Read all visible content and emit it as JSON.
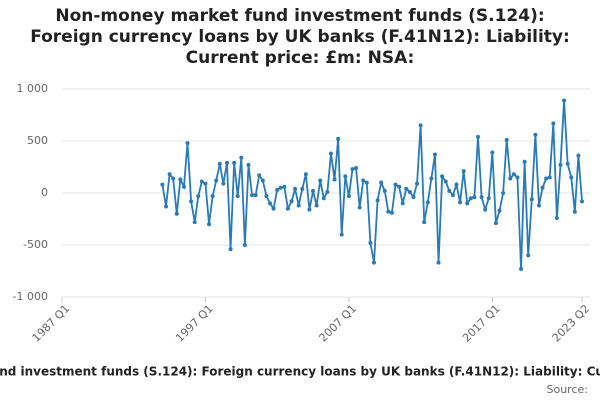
{
  "chart_data": {
    "type": "line",
    "title": "Non-money market fund investment funds (S.124): Foreign currency loans by UK banks (F.41N12): Liability: Current price: £m: NSA:",
    "source": "Source:",
    "x": [
      1994,
      1994.25,
      1994.5,
      1994.75,
      1995,
      1995.25,
      1995.5,
      1995.75,
      1996,
      1996.25,
      1996.5,
      1996.75,
      1997,
      1997.25,
      1997.5,
      1997.75,
      1998,
      1998.25,
      1998.5,
      1998.75,
      1999,
      1999.25,
      1999.5,
      1999.75,
      2000,
      2000.25,
      2000.5,
      2000.75,
      2001,
      2001.25,
      2001.5,
      2001.75,
      2002,
      2002.25,
      2002.5,
      2002.75,
      2003,
      2003.25,
      2003.5,
      2003.75,
      2004,
      2004.25,
      2004.5,
      2004.75,
      2005,
      2005.25,
      2005.5,
      2005.75,
      2006,
      2006.25,
      2006.5,
      2006.75,
      2007,
      2007.25,
      2007.5,
      2007.75,
      2008,
      2008.25,
      2008.5,
      2008.75,
      2009,
      2009.25,
      2009.5,
      2009.75,
      2010,
      2010.25,
      2010.5,
      2010.75,
      2011,
      2011.25,
      2011.5,
      2011.75,
      2012,
      2012.25,
      2012.5,
      2012.75,
      2013,
      2013.25,
      2013.5,
      2013.75,
      2014,
      2014.25,
      2014.5,
      2014.75,
      2015,
      2015.25,
      2015.5,
      2015.75,
      2016,
      2016.25,
      2016.5,
      2016.75,
      2017,
      2017.25,
      2017.5,
      2017.75,
      2018,
      2018.25,
      2018.5,
      2018.75,
      2019,
      2019.25,
      2019.5,
      2019.75,
      2020,
      2020.25,
      2020.5,
      2020.75,
      2021,
      2021.25,
      2021.5,
      2021.75,
      2022,
      2022.25,
      2022.5,
      2022.75,
      2023,
      2023.25
    ],
    "series": [
      {
        "name": "Non-money market fund investment funds (S.124): Foreign currency loans by UK banks (F.41N12): Liability: Current price: £m: NSA:",
        "color": "#2a7ab8",
        "values": [
          80,
          -130,
          180,
          140,
          -200,
          130,
          60,
          480,
          -80,
          -280,
          -30,
          110,
          90,
          -300,
          -30,
          120,
          280,
          90,
          290,
          -540,
          290,
          -30,
          340,
          -500,
          270,
          -20,
          -20,
          170,
          120,
          -30,
          -100,
          -150,
          30,
          50,
          60,
          -150,
          -80,
          40,
          -120,
          40,
          180,
          -160,
          20,
          -120,
          120,
          -50,
          10,
          380,
          130,
          520,
          -400,
          160,
          -30,
          230,
          240,
          -140,
          120,
          100,
          -480,
          -670,
          -70,
          100,
          20,
          -180,
          -190,
          80,
          60,
          -100,
          40,
          10,
          -40,
          90,
          650,
          -280,
          -90,
          140,
          370,
          -670,
          160,
          110,
          20,
          -20,
          80,
          -90,
          210,
          -100,
          -50,
          -40,
          540,
          -40,
          -160,
          -50,
          390,
          -290,
          -170,
          0,
          510,
          140,
          180,
          150,
          -730,
          300,
          -600,
          -60,
          560,
          -120,
          50,
          140,
          150,
          670,
          -240,
          270,
          890,
          280,
          150,
          -180,
          360,
          -80
        ]
      }
    ],
    "xlim": [
      1987,
      2023.25
    ],
    "xticks": [
      {
        "value": 1987,
        "label": "1987 Q1"
      },
      {
        "value": 1997,
        "label": "1997 Q1"
      },
      {
        "value": 2007,
        "label": "2007 Q1"
      },
      {
        "value": 2017,
        "label": "2017 Q1"
      },
      {
        "value": 2023.25,
        "label": "2023 Q2"
      }
    ],
    "ylim": [
      -1000,
      1000
    ],
    "yticks": [
      {
        "value": -1000,
        "label": "-1 000"
      },
      -500,
      0,
      500,
      {
        "value": 1000,
        "label": "1 000"
      }
    ],
    "grid": true
  }
}
